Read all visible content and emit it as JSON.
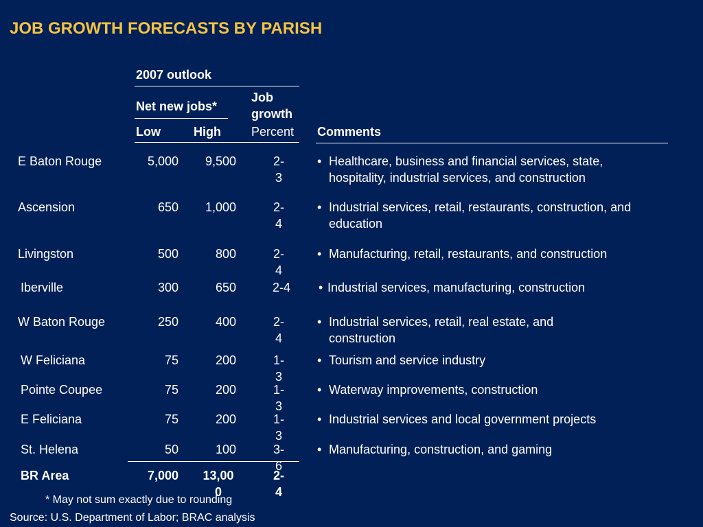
{
  "title": "JOB GROWTH FORECASTS BY PARISH",
  "header": {
    "outlook": "2007 outlook",
    "net_new_jobs": "Net new jobs*",
    "job_growth": "Job growth",
    "low": "Low",
    "high": "High",
    "percent": "Percent",
    "comments": "Comments"
  },
  "rows": [
    {
      "parish": "E Baton Rouge",
      "low": "5,000",
      "high": "9,500",
      "pct": "2-3",
      "comment": "Healthcare, business and financial services, state, hospitality, industrial services, and construction"
    },
    {
      "parish": "Ascension",
      "low": "650",
      "high": "1,000",
      "pct": "2-4",
      "comment": "Industrial services, retail, restaurants, construction, and education"
    },
    {
      "parish": "Livingston",
      "low": "500",
      "high": "800",
      "pct": "2-4",
      "comment": "Manufacturing, retail, restaurants, and construction"
    },
    {
      "parish": "Iberville",
      "low": "300",
      "high": "650",
      "pct": "2-4",
      "comment": "Industrial services, manufacturing, construction"
    },
    {
      "parish": "W Baton Rouge",
      "low": "250",
      "high": "400",
      "pct": "2-4",
      "comment": "Industrial services, retail, real estate, and construction"
    },
    {
      "parish": "W Feliciana",
      "low": "75",
      "high": "200",
      "pct": "1-3",
      "comment": "Tourism and service industry"
    },
    {
      "parish": "Pointe Coupee",
      "low": "75",
      "high": "200",
      "pct": "1-3",
      "comment": "Waterway improvements, construction"
    },
    {
      "parish": "E Feliciana",
      "low": "75",
      "high": "200",
      "pct": "1-3",
      "comment": "Industrial services and local government projects"
    },
    {
      "parish": "St. Helena",
      "low": "50",
      "high": "100",
      "pct": "3-6",
      "comment": "Manufacturing, construction, and gaming"
    }
  ],
  "total": {
    "parish": "BR Area",
    "low": "7,000",
    "high": "13,000",
    "pct": "2-4"
  },
  "footnote": "* May not sum exactly due to rounding",
  "source": "Source: U.S. Department of Labor; BRAC analysis",
  "colors": {
    "background": "#002057",
    "title": "#f5c342",
    "text": "#ffffff"
  },
  "bullet_symbol": "•"
}
